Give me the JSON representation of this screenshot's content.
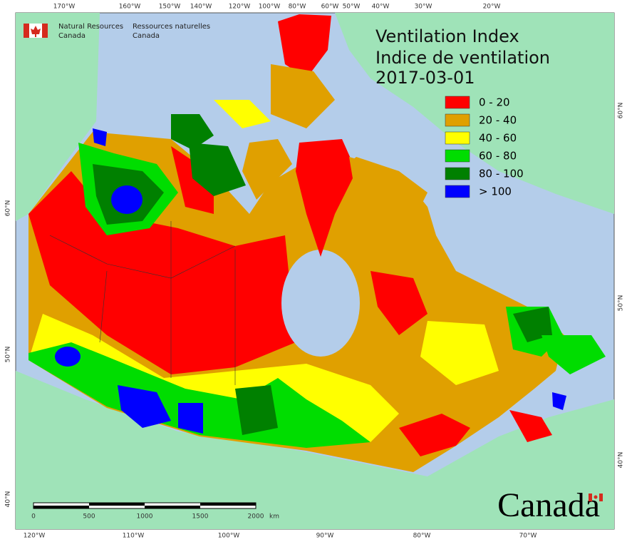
{
  "header": {
    "agency_en": "Natural Resources",
    "agency_en_2": "Canada",
    "agency_fr": "Ressources naturelles",
    "agency_fr_2": "Canada"
  },
  "title": {
    "line1": "Ventilation Index",
    "line2": "Indice de ventilation",
    "date": "2017-03-01"
  },
  "legend": [
    {
      "label": "0 - 20",
      "color": "#ff0000"
    },
    {
      "label": "20 - 40",
      "color": "#e0a000"
    },
    {
      "label": "40 - 60",
      "color": "#ffff00"
    },
    {
      "label": "60 - 80",
      "color": "#00dd00"
    },
    {
      "label": "80 - 100",
      "color": "#008000"
    },
    {
      "label": "> 100",
      "color": "#0000ff"
    }
  ],
  "graticule": {
    "top": [
      "170°W",
      "160°W",
      "150°W",
      "140°W",
      "120°W",
      "100°W",
      "80°W",
      "60°W",
      "50°W",
      "40°W",
      "30°W",
      "20°W"
    ],
    "bottom": [
      "120°W",
      "110°W",
      "100°W",
      "90°W",
      "80°W",
      "70°W"
    ],
    "left": [
      "60°N",
      "50°N",
      "40°N"
    ],
    "right": [
      "60°N",
      "50°N",
      "40°N"
    ]
  },
  "scale_bar": {
    "labels": [
      "0",
      "500",
      "1000",
      "1500",
      "2000"
    ],
    "unit": "km"
  },
  "wordmark": "Canada"
}
